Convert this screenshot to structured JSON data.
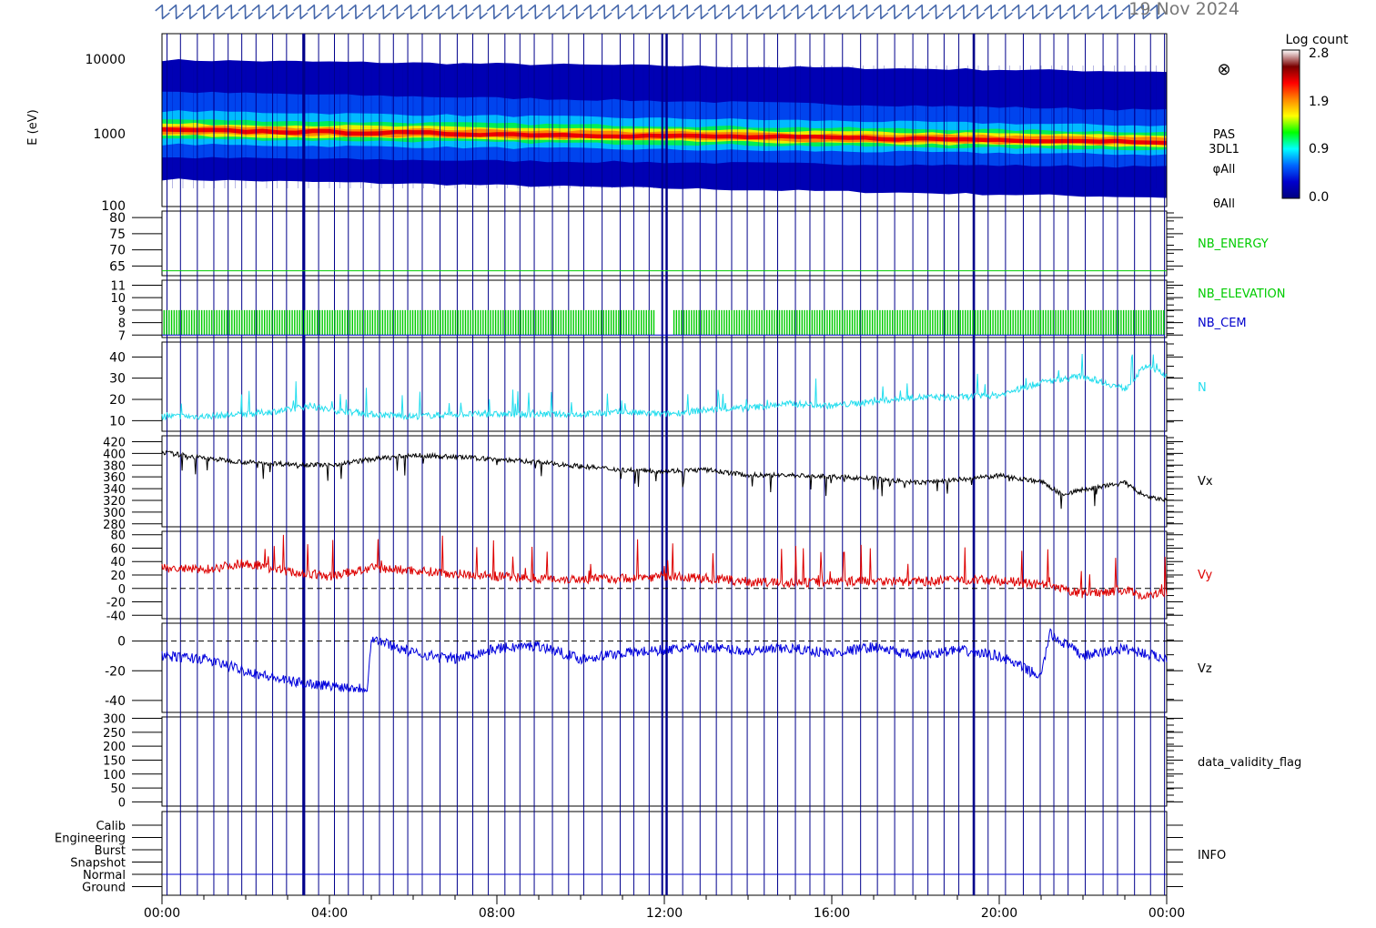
{
  "header": {
    "date_label": "19 Nov 2024",
    "overlay_glyph": "Z"
  },
  "colorbar": {
    "title": "Log count",
    "ticks": [
      "2.8",
      "1.9",
      "0.9",
      "0.0"
    ],
    "stops": [
      "#ffffff",
      "#7a0000",
      "#ff0000",
      "#ff8800",
      "#ffff00",
      "#00ff00",
      "#00ffff",
      "#0066ff",
      "#0000cc",
      "#000080"
    ]
  },
  "colors": {
    "frame": "#000000",
    "sweep_line": "#00008b",
    "nb_energy": "#00cc00",
    "nb_elevation": "#00cc00",
    "nb_cem": "#0000cc",
    "density": "#22ddee",
    "vx": "#000000",
    "vy": "#dd0000",
    "vz": "#0000dd",
    "info_label": "#000000"
  },
  "time_axis": {
    "range_hours": [
      0,
      24
    ],
    "tick_labels": [
      "00:00",
      "04:00",
      "08:00",
      "12:00",
      "16:00",
      "20:00",
      "00:00"
    ]
  },
  "chart_data": [
    {
      "type": "heatmap",
      "id": "energy_spectrogram",
      "ylabel": "E (eV)",
      "yscale": "log",
      "ylim": [
        100,
        15000
      ],
      "yticks": [
        "10000",
        "1000",
        "100"
      ],
      "side_labels": [
        "PAS",
        "3DL1",
        "φAll",
        "θAll"
      ],
      "side_symbol": "⊗",
      "description_values": {
        "peak_energy_eV_start": 900,
        "peak_energy_eV_end": 650,
        "flux_range_eV_start": [
          220,
          7000
        ],
        "flux_range_eV_end": [
          130,
          5000
        ]
      }
    },
    {
      "type": "line",
      "id": "nb_energy",
      "name": "NB_ENERGY",
      "ylim": [
        62,
        82
      ],
      "yticks": [
        "80",
        "75",
        "70",
        "65"
      ],
      "constant_value": 63.5
    },
    {
      "type": "bar",
      "id": "nb_elevation_cem",
      "series_names": [
        "NB_ELEVATION",
        "NB_CEM"
      ],
      "ylim": [
        6.8,
        11.4
      ],
      "yticks": [
        "11",
        "10",
        "9",
        "8",
        "7"
      ],
      "band_range": [
        7,
        9
      ]
    },
    {
      "type": "line",
      "id": "density",
      "name": "N",
      "ylim": [
        5,
        47
      ],
      "yticks": [
        "40",
        "30",
        "20",
        "10"
      ],
      "x": [
        0,
        1,
        2,
        3,
        3.5,
        4,
        5,
        6,
        7,
        8,
        9,
        10,
        11,
        12,
        13,
        14,
        15,
        16,
        17,
        18,
        19,
        20,
        21,
        22,
        23,
        23.5,
        24
      ],
      "values": [
        12,
        12,
        13,
        15,
        17,
        15,
        13,
        12,
        13,
        13,
        13,
        13,
        14,
        13,
        15,
        16,
        18,
        17,
        19,
        21,
        21,
        22,
        28,
        31,
        25,
        36,
        31
      ]
    },
    {
      "type": "line",
      "id": "vx",
      "name": "Vx",
      "ylim": [
        275,
        430
      ],
      "yticks": [
        "420",
        "400",
        "380",
        "360",
        "340",
        "320",
        "300",
        "280"
      ],
      "x": [
        0,
        1,
        2,
        3,
        4,
        5,
        6,
        7,
        8,
        9,
        10,
        11,
        12,
        13,
        14,
        15,
        16,
        17,
        18,
        19,
        20,
        21,
        21.5,
        22,
        23,
        23.5,
        24
      ],
      "values": [
        402,
        392,
        385,
        382,
        380,
        390,
        397,
        394,
        390,
        385,
        378,
        372,
        370,
        372,
        363,
        363,
        360,
        357,
        350,
        355,
        362,
        352,
        330,
        338,
        350,
        326,
        320
      ]
    },
    {
      "type": "line",
      "id": "vy",
      "name": "Vy",
      "ylim": [
        -45,
        85
      ],
      "yticks": [
        "80",
        "60",
        "40",
        "20",
        "0",
        "-20",
        "-40"
      ],
      "zero_line": true,
      "x": [
        0,
        1,
        2,
        3,
        4,
        5,
        6,
        7,
        8,
        9,
        10,
        11,
        12,
        13,
        14,
        15,
        16,
        17,
        18,
        19,
        20,
        21,
        22,
        23,
        23.5,
        24
      ],
      "values": [
        30,
        28,
        38,
        25,
        18,
        30,
        27,
        22,
        18,
        15,
        14,
        15,
        18,
        15,
        10,
        8,
        10,
        12,
        10,
        13,
        12,
        5,
        -8,
        -2,
        -12,
        -5
      ]
    },
    {
      "type": "line",
      "id": "vz",
      "name": "Vz",
      "ylim": [
        -48,
        12
      ],
      "yticks": [
        "0",
        "-20",
        "-40"
      ],
      "zero_line": true,
      "x": [
        0,
        1,
        2,
        3,
        4,
        4.9,
        5,
        6,
        7,
        8,
        9,
        10,
        11,
        12,
        13,
        14,
        15,
        16,
        17,
        18,
        19,
        20,
        21,
        21.2,
        22,
        23,
        24
      ],
      "values": [
        -10,
        -12,
        -20,
        -27,
        -30,
        -32,
        2,
        -8,
        -12,
        -5,
        -3,
        -12,
        -8,
        -6,
        -4,
        -7,
        -5,
        -8,
        -4,
        -10,
        -6,
        -10,
        -24,
        5,
        -10,
        -5,
        -12
      ]
    },
    {
      "type": "line",
      "id": "data_validity_flag",
      "name": "data_validity_flag",
      "ylim": [
        -15,
        305
      ],
      "yticks": [
        "300",
        "250",
        "200",
        "150",
        "100",
        "50",
        "0"
      ]
    },
    {
      "type": "table",
      "id": "info",
      "name": "INFO",
      "levels": [
        "Calib",
        "Engineering",
        "Burst",
        "Snapshot",
        "Normal",
        "Ground"
      ]
    }
  ]
}
